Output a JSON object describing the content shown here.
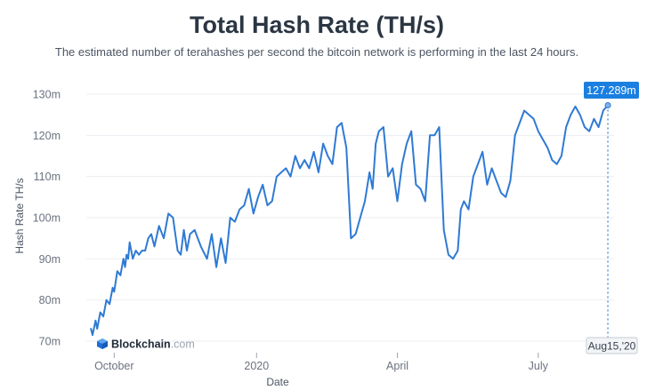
{
  "colors": {
    "line": "#2f7ad4",
    "grid": "#ebeef2",
    "tooltip_bg": "#1a7fe0"
  },
  "watermark": {
    "icon": "blockchain-logo-icon",
    "brand": "Blockchain",
    "suffix": ".com"
  },
  "tooltip": {
    "value_label": "127.289m",
    "date_label": "Aug15,'20"
  },
  "chart_data": {
    "type": "line",
    "title": "Total Hash Rate (TH/s)",
    "subtitle": "The estimated number of terahashes per second the bitcoin network is performing in the last 24 hours.",
    "xlabel": "Date",
    "ylabel": "Hash Rate TH/s",
    "ylim": [
      70,
      130
    ],
    "xlim": [
      "2019-09-13",
      "2020-08-19"
    ],
    "x_ticks": [
      {
        "date": "2019-10-01",
        "label": "October"
      },
      {
        "date": "2020-01-01",
        "label": "2020"
      },
      {
        "date": "2020-04-01",
        "label": "April"
      },
      {
        "date": "2020-07-01",
        "label": "July"
      }
    ],
    "y_ticks": [
      {
        "value": 70,
        "label": "70m"
      },
      {
        "value": 80,
        "label": "80m"
      },
      {
        "value": 90,
        "label": "90m"
      },
      {
        "value": 100,
        "label": "100m"
      },
      {
        "value": 110,
        "label": "110m"
      },
      {
        "value": 120,
        "label": "120m"
      },
      {
        "value": 130,
        "label": "130m"
      }
    ],
    "grid": true,
    "series": [
      {
        "x": [
          "2019-09-16",
          "2019-09-17",
          "2019-09-19",
          "2019-09-20",
          "2019-09-22",
          "2019-09-24",
          "2019-09-26",
          "2019-09-28",
          "2019-09-30",
          "2019-10-01",
          "2019-10-03",
          "2019-10-05",
          "2019-10-07",
          "2019-10-08",
          "2019-10-09",
          "2019-10-10",
          "2019-10-11",
          "2019-10-13",
          "2019-10-15",
          "2019-10-17",
          "2019-10-19",
          "2019-10-21",
          "2019-10-23",
          "2019-10-25",
          "2019-10-27",
          "2019-10-30",
          "2019-11-02",
          "2019-11-05",
          "2019-11-08",
          "2019-11-11",
          "2019-11-13",
          "2019-11-15",
          "2019-11-17",
          "2019-11-19",
          "2019-11-22",
          "2019-11-26",
          "2019-11-30",
          "2019-12-03",
          "2019-12-06",
          "2019-12-09",
          "2019-12-12",
          "2019-12-15",
          "2019-12-18",
          "2019-12-21",
          "2019-12-24",
          "2019-12-27",
          "2019-12-30",
          "2020-01-02",
          "2020-01-05",
          "2020-01-08",
          "2020-01-11",
          "2020-01-14",
          "2020-01-17",
          "2020-01-20",
          "2020-01-23",
          "2020-01-26",
          "2020-01-29",
          "2020-02-01",
          "2020-02-04",
          "2020-02-07",
          "2020-02-10",
          "2020-02-13",
          "2020-02-16",
          "2020-02-19",
          "2020-02-22",
          "2020-02-25",
          "2020-02-28",
          "2020-03-02",
          "2020-03-05",
          "2020-03-08",
          "2020-03-11",
          "2020-03-14",
          "2020-03-16",
          "2020-03-18",
          "2020-03-20",
          "2020-03-23",
          "2020-03-26",
          "2020-03-29",
          "2020-04-01",
          "2020-04-04",
          "2020-04-07",
          "2020-04-10",
          "2020-04-13",
          "2020-04-16",
          "2020-04-19",
          "2020-04-22",
          "2020-04-25",
          "2020-04-28",
          "2020-05-01",
          "2020-05-04",
          "2020-05-07",
          "2020-05-10",
          "2020-05-12",
          "2020-05-14",
          "2020-05-17",
          "2020-05-20",
          "2020-05-23",
          "2020-05-26",
          "2020-05-29",
          "2020-06-01",
          "2020-06-04",
          "2020-06-07",
          "2020-06-10",
          "2020-06-13",
          "2020-06-16",
          "2020-06-19",
          "2020-06-22",
          "2020-06-25",
          "2020-06-28",
          "2020-07-01",
          "2020-07-04",
          "2020-07-07",
          "2020-07-10",
          "2020-07-13",
          "2020-07-16",
          "2020-07-19",
          "2020-07-22",
          "2020-07-25",
          "2020-07-28",
          "2020-07-31",
          "2020-08-03",
          "2020-08-06",
          "2020-08-09",
          "2020-08-12",
          "2020-08-15"
        ],
        "y": [
          73,
          71.5,
          75,
          73,
          77,
          76,
          80,
          79,
          83,
          82,
          87,
          86,
          90,
          88,
          91,
          90,
          94,
          90,
          92,
          91,
          92,
          92,
          95,
          96,
          93,
          98,
          95,
          101,
          100,
          92,
          91,
          97,
          92,
          96,
          97,
          93,
          90,
          96,
          88,
          95,
          89,
          100,
          99,
          102,
          103,
          107,
          101,
          105,
          108,
          103,
          104,
          110,
          111,
          112,
          110,
          115,
          112,
          114,
          112,
          116,
          111,
          118,
          115,
          113,
          122,
          123,
          117,
          95,
          96,
          100,
          104,
          111,
          107,
          118,
          121,
          122,
          110,
          112,
          104,
          113,
          118,
          121,
          108,
          107,
          104,
          120,
          120,
          122,
          97,
          91,
          90,
          92,
          102,
          104,
          102,
          110,
          113,
          116,
          108,
          112,
          109,
          106,
          105,
          109,
          120,
          123,
          126,
          125,
          124,
          121,
          119,
          117,
          114,
          113,
          115,
          122,
          125,
          127,
          125,
          122,
          121,
          124,
          122,
          126,
          127.3
        ]
      }
    ]
  }
}
